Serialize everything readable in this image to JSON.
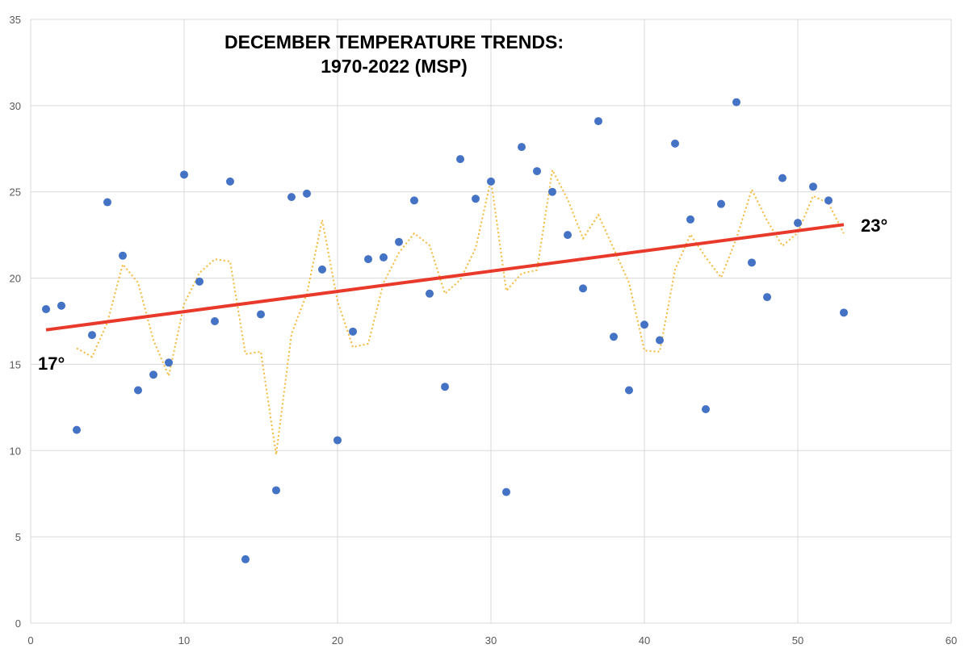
{
  "chart_data": {
    "type": "scatter",
    "title_lines": [
      "DECEMBER TEMPERATURE TRENDS:",
      "1970-2022 (MSP)"
    ],
    "xlabel": "",
    "ylabel": "",
    "xlim": [
      0,
      60
    ],
    "ylim": [
      0,
      35
    ],
    "x_ticks": [
      0,
      10,
      20,
      30,
      40,
      50,
      60
    ],
    "y_ticks": [
      0,
      5,
      10,
      15,
      20,
      25,
      30,
      35
    ],
    "grid": true,
    "colors": {
      "points": "#4472C4",
      "trendline": "#E8392A",
      "moving_average": "#F4B93A",
      "grid": "#D9D9D9"
    },
    "points": {
      "x": [
        1,
        2,
        3,
        4,
        5,
        6,
        7,
        8,
        9,
        10,
        11,
        12,
        13,
        14,
        15,
        16,
        17,
        18,
        19,
        20,
        21,
        22,
        23,
        24,
        25,
        26,
        27,
        28,
        29,
        30,
        31,
        32,
        33,
        34,
        35,
        36,
        37,
        38,
        39,
        40,
        41,
        42,
        43,
        44,
        45,
        46,
        47,
        48,
        49,
        50,
        51,
        52,
        53
      ],
      "y": [
        18.2,
        18.4,
        11.2,
        16.7,
        24.4,
        21.3,
        13.5,
        14.4,
        15.1,
        26.0,
        19.8,
        17.5,
        25.6,
        3.7,
        17.9,
        7.7,
        24.7,
        24.9,
        20.5,
        10.6,
        16.9,
        21.1,
        21.2,
        22.1,
        24.5,
        19.1,
        13.7,
        26.9,
        24.6,
        25.6,
        7.6,
        27.6,
        26.2,
        25.0,
        22.5,
        19.4,
        29.1,
        16.6,
        13.5,
        17.3,
        16.4,
        27.8,
        23.4,
        12.4,
        24.3,
        30.2,
        20.9,
        18.9,
        25.8,
        23.2,
        25.3,
        24.5,
        18.0
      ]
    },
    "trendline": {
      "type": "linear",
      "start": [
        1,
        17.0
      ],
      "end": [
        53,
        23.1
      ],
      "start_label": "17°",
      "end_label": "23°"
    },
    "moving_average": {
      "period": 3,
      "style": "dotted"
    }
  }
}
